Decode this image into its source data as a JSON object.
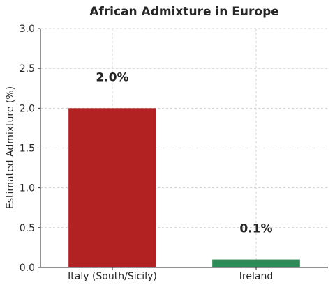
{
  "chart_data": {
    "type": "bar",
    "title": "African Admixture in Europe",
    "xlabel": "",
    "ylabel": "Estimated Admixture (%)",
    "categories": [
      "Italy (South/Sicily)",
      "Ireland"
    ],
    "values": [
      2.0,
      0.1
    ],
    "data_labels": [
      "2.0%",
      "0.1%"
    ],
    "bar_colors": [
      "#b22222",
      "#2e8b57"
    ],
    "ylim": [
      0,
      3.0
    ],
    "yticks": [
      0.0,
      0.5,
      1.0,
      1.5,
      2.0,
      2.5,
      3.0
    ],
    "ytick_labels": [
      "0.0",
      "0.5",
      "1.0",
      "1.5",
      "2.0",
      "2.5",
      "3.0"
    ],
    "grid": true,
    "legend": "none"
  }
}
